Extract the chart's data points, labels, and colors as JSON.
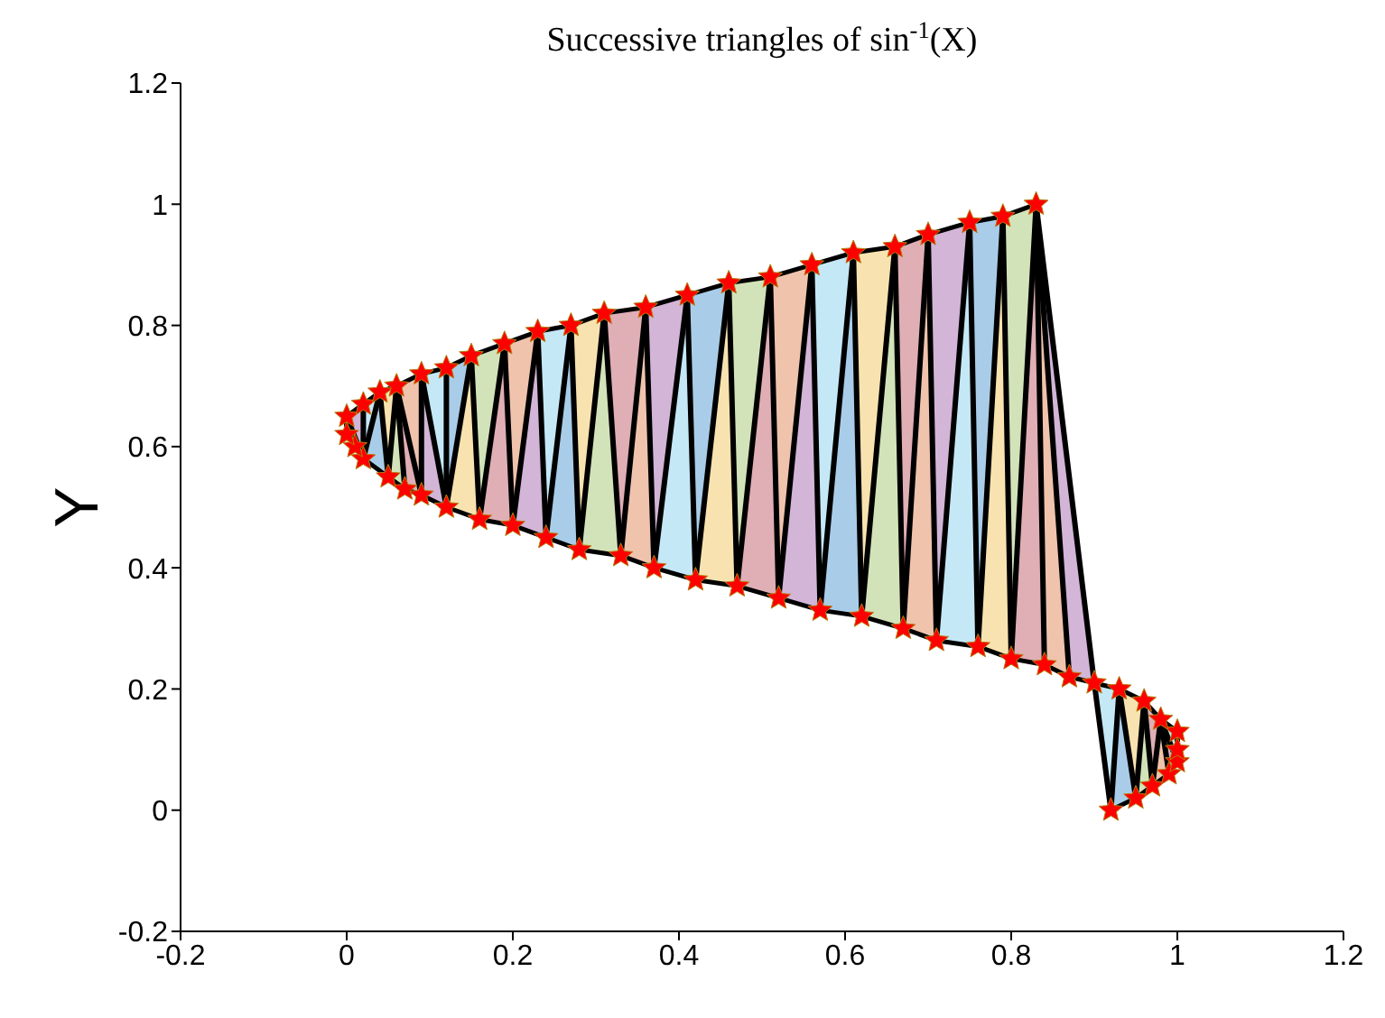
{
  "chart_data": {
    "type": "line",
    "title": "Successive triangles of sin$^{-1}$(X)",
    "ylabel": "Y",
    "x": [
      0.92,
      0.95,
      0.97,
      0.99,
      1.0,
      1.0,
      1.0,
      0.98,
      0.96,
      0.93,
      0.9,
      0.87,
      0.84,
      0.8,
      0.76,
      0.71,
      0.67,
      0.62,
      0.57,
      0.52,
      0.47,
      0.42,
      0.37,
      0.33,
      0.28,
      0.24,
      0.2,
      0.16,
      0.12,
      0.09,
      0.07,
      0.05,
      0.02,
      0.01,
      0.0,
      0.0,
      0.02,
      0.04,
      0.06,
      0.09,
      0.12,
      0.15,
      0.19,
      0.23,
      0.27,
      0.31,
      0.36,
      0.41,
      0.46,
      0.51,
      0.56,
      0.61,
      0.66,
      0.7,
      0.75,
      0.79,
      0.83
    ],
    "series": [
      {
        "color": "#000000",
        "values": [
          0.0,
          0.02,
          0.04,
          0.06,
          0.08,
          0.1,
          0.13,
          0.15,
          0.18,
          0.2,
          0.21,
          0.22,
          0.24,
          0.25,
          0.27,
          0.28,
          0.3,
          0.32,
          0.33,
          0.35,
          0.37,
          0.38,
          0.4,
          0.42,
          0.43,
          0.45,
          0.47,
          0.48,
          0.5,
          0.52,
          0.53,
          0.55,
          0.58,
          0.6,
          0.62,
          0.65,
          0.67,
          0.69,
          0.7,
          0.72,
          0.73,
          0.75,
          0.77,
          0.79,
          0.8,
          0.82,
          0.83,
          0.85,
          0.87,
          0.88,
          0.9,
          0.92,
          0.93,
          0.95,
          0.97,
          0.98,
          1.0
        ]
      },
      {
        "type": "scatter",
        "marker": "star",
        "color": "#ff0000",
        "values": [
          0.0,
          0.02,
          0.04,
          0.06,
          0.08,
          0.1,
          0.13,
          0.15,
          0.18,
          0.2,
          0.21,
          0.22,
          0.24,
          0.25,
          0.27,
          0.28,
          0.3,
          0.32,
          0.33,
          0.35,
          0.37,
          0.38,
          0.4,
          0.42,
          0.43,
          0.45,
          0.47,
          0.48,
          0.5,
          0.52,
          0.53,
          0.55,
          0.58,
          0.6,
          0.62,
          0.65,
          0.67,
          0.69,
          0.7,
          0.72,
          0.73,
          0.75,
          0.77,
          0.79,
          0.8,
          0.82,
          0.83,
          0.85,
          0.87,
          0.88,
          0.9,
          0.92,
          0.93,
          0.95,
          0.97,
          0.98,
          1.0
        ]
      }
    ],
    "xlim": [
      -0.2,
      1.2
    ],
    "xticks": [
      -0.2,
      0,
      0.2,
      0.4,
      0.6,
      0.8,
      1,
      1.2
    ],
    "ylim": [
      -0.2,
      1.2
    ],
    "yticks": [
      -0.2,
      0,
      0.2,
      0.4,
      0.6,
      0.8,
      1,
      1.2
    ],
    "grid": false,
    "legend": false,
    "line_style": "solid"
  }
}
